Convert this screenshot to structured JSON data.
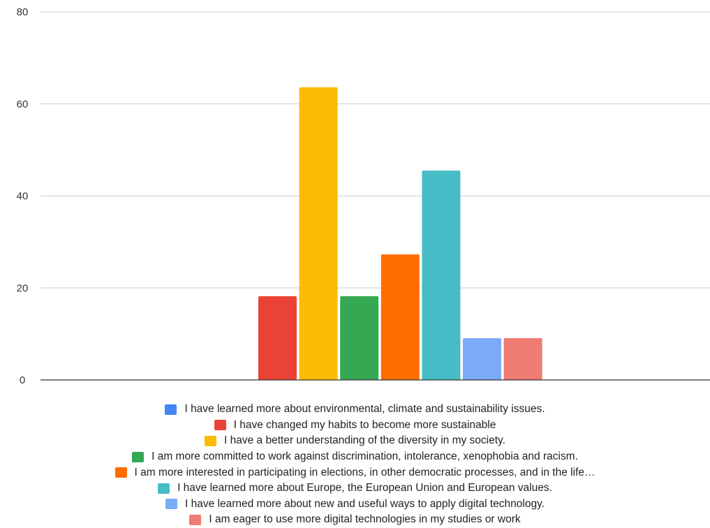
{
  "chart_data": {
    "type": "bar",
    "title": "",
    "xlabel": "",
    "ylabel": "",
    "ylim": [
      0,
      80
    ],
    "yticks": [
      0,
      20,
      40,
      60,
      80
    ],
    "grid": true,
    "legend_position": "bottom",
    "series": [
      {
        "name": "I have learned more about environmental, climate and sustainability issues.",
        "value": 0,
        "color": "#4285F4"
      },
      {
        "name": "I have changed my habits to become more sustainable",
        "value": 18.2,
        "color": "#EA4335"
      },
      {
        "name": "I have a better understanding of the diversity in my society.",
        "value": 63.6,
        "color": "#FBBC04"
      },
      {
        "name": "I am more committed to work against discrimination, intolerance, xenophobia and racism.",
        "value": 18.2,
        "color": "#34A853"
      },
      {
        "name": "I am more interested in participating in elections, in other democratic processes, and in the life…",
        "value": 27.3,
        "color": "#FF6D01"
      },
      {
        "name": "I have learned more about Europe, the European Union and European values.",
        "value": 45.5,
        "color": "#46BDC6"
      },
      {
        "name": "I have learned more about new and useful ways to apply digital technology.",
        "value": 9.1,
        "color": "#7BAAF7"
      },
      {
        "name": "I am eager to use more digital technologies in my studies or work",
        "value": 9.1,
        "color": "#F07B72"
      }
    ]
  }
}
